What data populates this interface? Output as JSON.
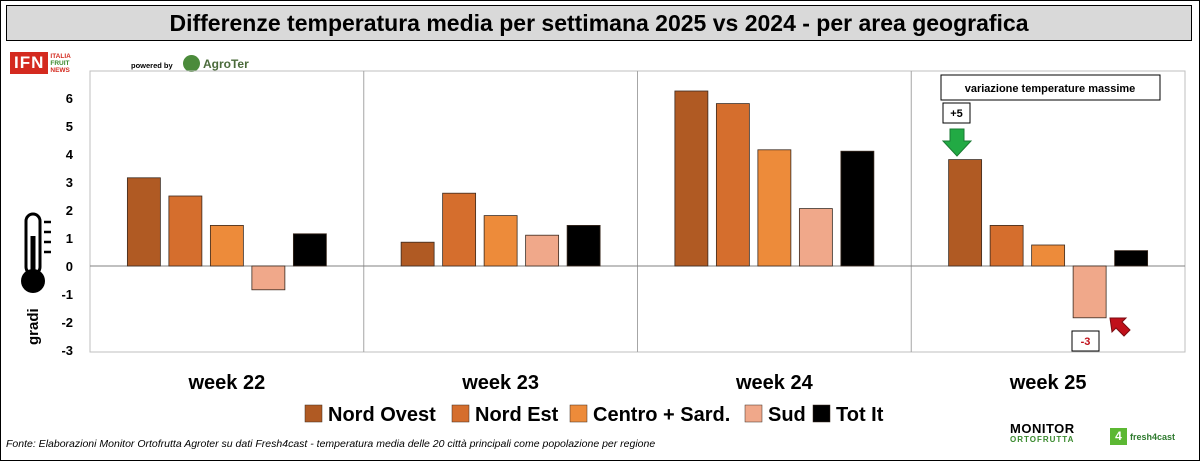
{
  "title": "Differenze temperatura media per settimana 2025 vs 2024 - per area geografica",
  "branding": {
    "ifn_logo_text": "IFN",
    "ifn_side_text": [
      "ITALIA",
      "FRUIT",
      "NEWS"
    ],
    "powered_by": "powered by",
    "agroter": "AgroTer",
    "monitor_line1": "MONITOR",
    "monitor_line2": "ORTOFRUTTA",
    "fresh4cast": "fresh4cast"
  },
  "footer_note": "Fonte: Elaborazioni Monitor Ortofrutta Agroter su dati Fresh4cast - temperatura media delle 20 città principali come popolazione per regione",
  "colors": {
    "Nord Ovest": "#b05a23",
    "Nord Est": "#d56e2d",
    "Centro + Sard.": "#ed8b3a",
    "Sud": "#f0a88a",
    "Tot It": "#000000",
    "arrow_up": "#22aa44",
    "arrow_down": "#c0101a"
  },
  "annotations": {
    "box_label": "variazione temperature massime",
    "plus_label": "+5",
    "minus_label": "-3"
  },
  "chart_data": {
    "type": "bar",
    "title": "Differenze temperatura media per settimana 2025 vs 2024 - per area geografica",
    "ylabel": "gradi",
    "xlabel": "",
    "ylim": [
      -3,
      6.5
    ],
    "yticks": [
      6,
      5,
      4,
      3,
      2,
      1,
      0,
      -1,
      -2,
      -3
    ],
    "categories": [
      "week 22",
      "week 23",
      "week 24",
      "week 25"
    ],
    "series": [
      {
        "name": "Nord Ovest",
        "values": [
          3.15,
          0.85,
          6.25,
          3.8
        ]
      },
      {
        "name": "Nord Est",
        "values": [
          2.5,
          2.6,
          5.8,
          1.45
        ]
      },
      {
        "name": "Centro + Sard.",
        "values": [
          1.45,
          1.8,
          4.15,
          0.75
        ]
      },
      {
        "name": "Sud",
        "values": [
          -0.85,
          1.1,
          2.05,
          -1.85
        ]
      },
      {
        "name": "Tot It",
        "values": [
          1.15,
          1.45,
          4.1,
          0.55
        ]
      }
    ],
    "grid": false,
    "legend_position": "bottom"
  }
}
